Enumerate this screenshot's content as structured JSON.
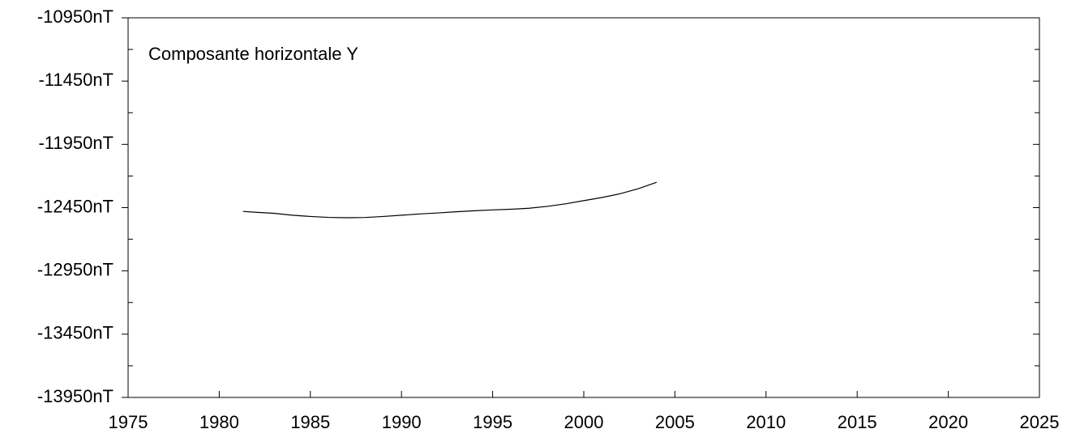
{
  "chart_data": {
    "type": "line",
    "annotation": "Composante horizontale Y",
    "x": [
      1981.3,
      1982,
      1983,
      1984,
      1985,
      1986,
      1987,
      1988,
      1989,
      1990,
      1991,
      1992,
      1993,
      1994,
      1995,
      1996,
      1997,
      1998,
      1999,
      2000,
      2001,
      2002,
      2003,
      2004
    ],
    "series": [
      {
        "color": "#000000",
        "values": [
          -12480,
          -12487,
          -12495,
          -12510,
          -12520,
          -12527,
          -12530,
          -12528,
          -12520,
          -12510,
          -12500,
          -12492,
          -12483,
          -12475,
          -12468,
          -12463,
          -12455,
          -12440,
          -12420,
          -12395,
          -12370,
          -12340,
          -12300,
          -12250
        ]
      }
    ],
    "xlim": [
      1975,
      2025
    ],
    "xticks": [
      1975,
      1980,
      1985,
      1990,
      1995,
      2000,
      2005,
      2010,
      2015,
      2020,
      2025
    ],
    "ylim": [
      -13950,
      -10950
    ],
    "yticks": [
      {
        "value": -10950,
        "label": "-10950nT"
      },
      {
        "value": -11450,
        "label": "-11450nT"
      },
      {
        "value": -11950,
        "label": "-11950nT"
      },
      {
        "value": -12450,
        "label": "-12450nT"
      },
      {
        "value": -12950,
        "label": "-12950nT"
      },
      {
        "value": -13450,
        "label": "-13450nT"
      },
      {
        "value": -13950,
        "label": "-13950nT"
      }
    ],
    "yminorticks": [
      -11200,
      -11700,
      -12200,
      -12700,
      -13200,
      -13700
    ]
  }
}
